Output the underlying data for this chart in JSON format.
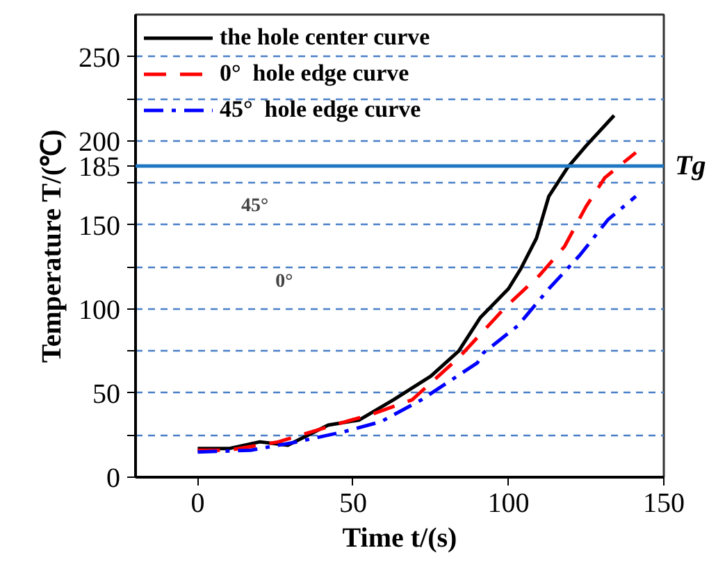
{
  "chart_data": {
    "type": "line",
    "xlabel": "Time t/(s)",
    "ylabel": "Temperature T/(℃)",
    "xlim": [
      -20,
      150
    ],
    "xticks": [
      0,
      50,
      100,
      150
    ],
    "ylim": [
      0,
      275
    ],
    "yticks": [
      0,
      {
        "value": 25,
        "label": null
      },
      50,
      {
        "value": 75,
        "label": null
      },
      100,
      {
        "value": 125,
        "label": null
      },
      150,
      {
        "value": 175,
        "label": null
      },
      185,
      200,
      {
        "value": 225,
        "label": null
      },
      250
    ],
    "grid": "y",
    "legend": "top left",
    "series": [
      {
        "name": "the hole center curve",
        "color": "#000000",
        "line_style": "solid",
        "x": [
          0,
          10,
          20,
          29,
          42,
          52,
          63,
          75,
          84,
          91,
          100,
          104,
          109,
          113,
          119,
          125,
          134
        ],
        "values": [
          17,
          17,
          21,
          19,
          31,
          34,
          46,
          60,
          75,
          95,
          112,
          124,
          142,
          167,
          184,
          197,
          215
        ]
      },
      {
        "name": "0°  hole edge curve",
        "color": "#ff0000",
        "line_style": "dashed",
        "x": [
          0,
          10,
          26,
          42,
          57,
          69,
          84,
          99,
          110,
          118,
          125,
          131,
          141
        ],
        "values": [
          16,
          16,
          21,
          30,
          38,
          46,
          71,
          101,
          120,
          137,
          161,
          178,
          193
        ]
      },
      {
        "name": "45°  hole edge curve",
        "color": "#0000ff",
        "line_style": "dashdot",
        "x": [
          0,
          17,
          32,
          47,
          59,
          72,
          90,
          92,
          103,
          113,
          123,
          132,
          141
        ],
        "values": [
          15,
          16,
          21,
          27,
          33,
          46,
          68,
          74,
          90,
          112,
          132,
          153,
          167
        ]
      }
    ],
    "ref_lines": [
      {
        "axis": "y",
        "value": 185,
        "label": "Tg",
        "color": "#1f77c4",
        "line_style": "solid"
      }
    ],
    "annotations": [
      "45°",
      "0°"
    ]
  }
}
